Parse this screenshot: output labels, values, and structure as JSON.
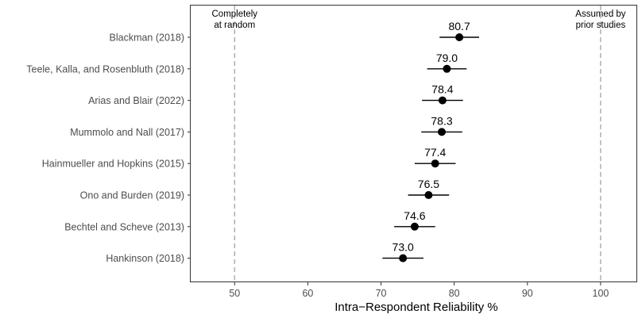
{
  "chart_data": {
    "type": "scatter",
    "subtype": "dot-and-whisker",
    "title": "",
    "xlabel": "Intra−Respondent Reliability %",
    "ylabel": "",
    "xlim": [
      44,
      105
    ],
    "x_ticks": [
      50,
      60,
      70,
      80,
      90,
      100
    ],
    "x_tick_labels": [
      "50",
      "60",
      "70",
      "80",
      "90",
      "100"
    ],
    "grid": false,
    "legend": "none",
    "point_color": "#000000",
    "reference_line_color": "#b3b3b3",
    "studies": [
      {
        "label": "Blackman (2018)",
        "estimate": 80.7,
        "value_label": "80.7",
        "lower": 78.0,
        "upper": 83.4
      },
      {
        "label": "Teele, Kalla, and Rosenbluth (2018)",
        "estimate": 79.0,
        "value_label": "79.0",
        "lower": 76.3,
        "upper": 81.7
      },
      {
        "label": "Arias and Blair (2022)",
        "estimate": 78.4,
        "value_label": "78.4",
        "lower": 75.6,
        "upper": 81.2
      },
      {
        "label": "Mummolo and Nall (2017)",
        "estimate": 78.3,
        "value_label": "78.3",
        "lower": 75.5,
        "upper": 81.1
      },
      {
        "label": "Hainmueller and Hopkins (2015)",
        "estimate": 77.4,
        "value_label": "77.4",
        "lower": 74.6,
        "upper": 80.2
      },
      {
        "label": "Ono and Burden (2019)",
        "estimate": 76.5,
        "value_label": "76.5",
        "lower": 73.7,
        "upper": 79.3
      },
      {
        "label": "Bechtel and Scheve (2013)",
        "estimate": 74.6,
        "value_label": "74.6",
        "lower": 71.8,
        "upper": 77.4
      },
      {
        "label": "Hankinson (2018)",
        "estimate": 73.0,
        "value_label": "73.0",
        "lower": 70.2,
        "upper": 75.8
      }
    ],
    "reference_lines": [
      {
        "x": 50,
        "label_lines": [
          "Completely",
          "at random"
        ]
      },
      {
        "x": 100,
        "label_lines": [
          "Assumed by",
          "prior studies"
        ]
      }
    ]
  }
}
